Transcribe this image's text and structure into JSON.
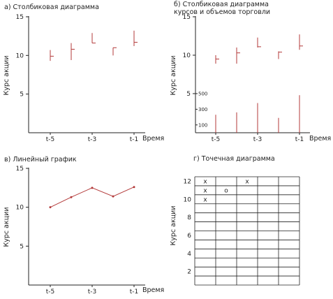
{
  "chart_data": [
    {
      "type": "bar",
      "subtype": "ohlc",
      "title": "а) Столбиковая диаграмма",
      "ylabel": "Курс акции",
      "xlabel": "Время",
      "ylim": [
        0,
        15
      ],
      "yticks": [
        5,
        10,
        15
      ],
      "x": [
        1,
        2,
        3,
        4,
        5
      ],
      "xticks": [
        {
          "x": 1,
          "label": "t-5"
        },
        {
          "x": 3,
          "label": "t-3"
        },
        {
          "x": 5,
          "label": "t-1"
        }
      ],
      "bars": [
        {
          "high": 10.7,
          "low": 9.3,
          "close": 9.9
        },
        {
          "high": 11.6,
          "low": 9.4,
          "close": 10.8
        },
        {
          "high": 12.9,
          "low": 11.6,
          "close": 11.6
        },
        {
          "high": 11.0,
          "low": 10.0,
          "close": 11.0
        },
        {
          "high": 13.2,
          "low": 11.2,
          "close": 11.7
        }
      ]
    },
    {
      "type": "bar",
      "subtype": "ohlc-volume",
      "title": "б) Столбиковая диаграмма",
      "title_line2": "курсов и объемов торговли",
      "ylabel": "Курс акции",
      "xlabel": "Время",
      "ylim": [
        5,
        15
      ],
      "yticks": [
        5,
        10,
        15
      ],
      "x": [
        1,
        2,
        3,
        4,
        5
      ],
      "xticks": [
        {
          "x": 1,
          "label": "t-5"
        },
        {
          "x": 3,
          "label": "t-3"
        },
        {
          "x": 5,
          "label": "t-1"
        }
      ],
      "bars": [
        {
          "high": 10.0,
          "low": 8.9,
          "close": 9.5
        },
        {
          "high": 11.0,
          "low": 8.9,
          "close": 10.3
        },
        {
          "high": 12.3,
          "low": 11.0,
          "close": 11.1
        },
        {
          "high": 10.5,
          "low": 9.5,
          "close": 10.4
        },
        {
          "high": 12.7,
          "low": 10.7,
          "close": 11.2
        }
      ],
      "volume_scale": {
        "ticks": [
          100,
          300,
          500
        ],
        "max": 500
      },
      "volume": [
        230,
        260,
        380,
        190,
        480
      ]
    },
    {
      "type": "line",
      "title": "в) Линейный график",
      "ylabel": "Курс акции",
      "xlabel": "Время",
      "ylim": [
        0,
        15
      ],
      "yticks": [
        5,
        10,
        15
      ],
      "x": [
        1,
        2,
        3,
        4,
        5
      ],
      "xticks": [
        {
          "x": 1,
          "label": "t-5"
        },
        {
          "x": 3,
          "label": "t-3"
        },
        {
          "x": 5,
          "label": "t-1"
        }
      ],
      "series": [
        {
          "values": [
            10.0,
            11.3,
            12.5,
            11.4,
            12.6
          ]
        }
      ]
    },
    {
      "type": "scatter",
      "subtype": "point-and-figure",
      "title": "г) Точечная диаграмма",
      "ylabel": "Курс акции",
      "ylim": [
        1,
        14
      ],
      "yticks": [
        2,
        4,
        6,
        8,
        10,
        12
      ],
      "columns": 5,
      "cells": [
        {
          "col": 1,
          "row": 12,
          "mark": "x"
        },
        {
          "col": 1,
          "row": 11,
          "mark": "x"
        },
        {
          "col": 1,
          "row": 10,
          "mark": "x"
        },
        {
          "col": 2,
          "row": 11,
          "mark": "o"
        },
        {
          "col": 3,
          "row": 12,
          "mark": "x"
        }
      ]
    }
  ]
}
